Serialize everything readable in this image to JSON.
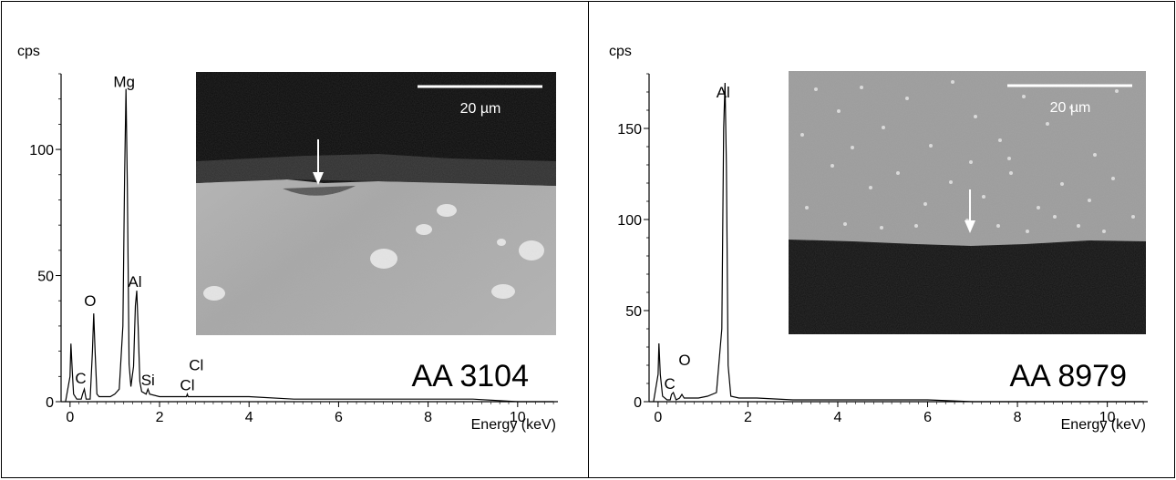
{
  "chart_data": [
    {
      "type": "line",
      "sample_label": "AA 3104",
      "ylabel": "cps",
      "xlabel": "Energy (keV)",
      "xlim": [
        -0.2,
        10.9
      ],
      "ylim": [
        0,
        130
      ],
      "x_ticks": [
        0,
        2,
        4,
        6,
        8,
        10
      ],
      "y_ticks": [
        0,
        50,
        100
      ],
      "grid": false,
      "series": [
        {
          "x": [
            -0.1,
            0.0,
            0.02,
            0.05,
            0.08,
            0.15,
            0.25,
            0.28,
            0.32,
            0.36,
            0.45,
            0.5,
            0.53,
            0.56,
            0.6,
            0.65,
            0.75,
            0.9,
            1.0,
            1.1,
            1.18,
            1.22,
            1.25,
            1.28,
            1.32,
            1.36,
            1.42,
            1.46,
            1.49,
            1.52,
            1.56,
            1.6,
            1.7,
            1.74,
            1.78,
            2.0,
            2.3,
            2.6,
            2.62,
            2.64,
            2.7,
            3.0,
            4.0,
            5.0,
            6.0,
            7.0,
            8.0,
            9.0,
            10.0,
            10.8
          ],
          "y": [
            0,
            10,
            23,
            12,
            3,
            1,
            1,
            3,
            5,
            1,
            1,
            20,
            35,
            20,
            3,
            2,
            2,
            2,
            3,
            5,
            30,
            90,
            124,
            85,
            15,
            6,
            14,
            38,
            44,
            30,
            8,
            4,
            3,
            5,
            3,
            2,
            2,
            2,
            3,
            2,
            2,
            2,
            2,
            1,
            1,
            1,
            1,
            1,
            0,
            0
          ]
        }
      ],
      "peak_labels": [
        {
          "text": "Mg",
          "x": 1.25,
          "y": 124
        },
        {
          "text": "O",
          "x": 0.53,
          "y": 35
        },
        {
          "text": "Al",
          "x": 1.49,
          "y": 44
        },
        {
          "text": "C",
          "x": 0.28,
          "y": 5
        },
        {
          "text": "Si",
          "x": 1.74,
          "y": 5
        },
        {
          "text": "Cl",
          "x": 2.62,
          "y": 3
        },
        {
          "text": "Cl",
          "x": 2.82,
          "y": 11
        }
      ],
      "inset": {
        "scale_bar": "20 µm"
      }
    },
    {
      "type": "line",
      "sample_label": "AA 8979",
      "ylabel": "cps",
      "xlabel": "Energy (keV)",
      "xlim": [
        -0.2,
        10.9
      ],
      "ylim": [
        0,
        180
      ],
      "x_ticks": [
        0,
        2,
        4,
        6,
        8,
        10
      ],
      "y_ticks": [
        0,
        50,
        100,
        150
      ],
      "grid": false,
      "series": [
        {
          "x": [
            -0.1,
            0.0,
            0.02,
            0.05,
            0.1,
            0.2,
            0.27,
            0.3,
            0.34,
            0.4,
            0.48,
            0.53,
            0.58,
            0.7,
            0.9,
            1.1,
            1.3,
            1.42,
            1.46,
            1.49,
            1.52,
            1.56,
            1.62,
            1.8,
            2.2,
            3.0,
            4.0,
            5.0,
            6.0,
            7.0,
            8.0,
            9.0,
            10.0,
            10.8
          ],
          "y": [
            0,
            15,
            32,
            15,
            3,
            1,
            1,
            4,
            5,
            1,
            2,
            4,
            2,
            2,
            2,
            3,
            5,
            40,
            150,
            175,
            130,
            20,
            3,
            2,
            2,
            1,
            1,
            1,
            1,
            0,
            0,
            0,
            0,
            0
          ]
        }
      ],
      "peak_labels": [
        {
          "text": "Al",
          "x": 1.49,
          "y": 175
        },
        {
          "text": "C",
          "x": 0.3,
          "y": 4
        },
        {
          "text": "O",
          "x": 0.55,
          "y": 18
        }
      ],
      "inset": {
        "scale_bar": "20 µm"
      }
    }
  ]
}
